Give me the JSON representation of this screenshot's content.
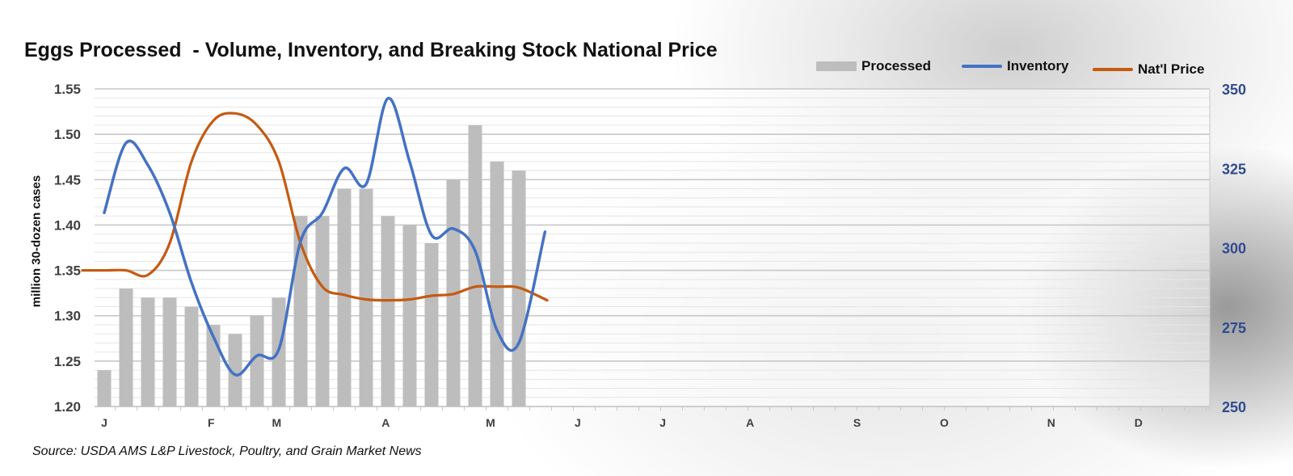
{
  "chart_data": {
    "type": "bar+line",
    "title": "Eggs Processed  - Volume, Inventory, and Breaking Stock National Price",
    "ylabel": "million 30-dozen cases",
    "source": "Source: USDA AMS L&P Livestock, Poultry, and Grain Market News",
    "x_unit": "week of year (0 = first week of January)",
    "month_labels": [
      "J",
      "F",
      "M",
      "A",
      "M",
      "J",
      "J",
      "A",
      "S",
      "O",
      "N",
      "D"
    ],
    "month_label_weeks": [
      0,
      4.9,
      7.9,
      12.9,
      17.7,
      21.7,
      25.6,
      29.6,
      34.5,
      38.5,
      43.4,
      47.4
    ],
    "yleft": {
      "ticks": [
        "1.20",
        "1.25",
        "1.30",
        "1.35",
        "1.40",
        "1.45",
        "1.50",
        "1.55"
      ],
      "lim": [
        1.2,
        1.55
      ]
    },
    "yright": {
      "ticks": [
        "250",
        "275",
        "300",
        "325",
        "350"
      ],
      "lim": [
        250,
        350
      ]
    },
    "grid": true,
    "legend": {
      "placement": "top-right",
      "entries": [
        "Processed",
        "Inventory",
        "Nat'l Price"
      ]
    },
    "colors": {
      "processed": "#bdbdbd",
      "inventory": "#4472C4",
      "price": "#C55A11",
      "right_axis": "#2F4B8F"
    },
    "series": [
      {
        "name": "Processed",
        "type": "bar",
        "axis": "left",
        "x": [
          0,
          1,
          2,
          3,
          4,
          5,
          6,
          7,
          8,
          9,
          10,
          11,
          12,
          13,
          14,
          15,
          16,
          17,
          18,
          19
        ],
        "values": [
          1.24,
          1.33,
          1.32,
          1.32,
          1.31,
          1.29,
          1.28,
          1.3,
          1.32,
          1.41,
          1.41,
          1.44,
          1.44,
          1.41,
          1.4,
          1.38,
          1.45,
          1.51,
          1.47,
          1.46
        ]
      },
      {
        "name": "Inventory",
        "type": "line",
        "axis": "right",
        "x": [
          0,
          1,
          2,
          3,
          4,
          5,
          6,
          7,
          8,
          9,
          10,
          11,
          12,
          13,
          14,
          15,
          16,
          17,
          18,
          19,
          20.2
        ],
        "values": [
          311,
          333,
          326,
          311,
          289,
          272,
          260,
          266,
          268,
          302,
          311,
          325,
          320,
          347,
          327,
          304,
          306,
          299,
          274,
          270,
          305
        ]
      },
      {
        "name": "Nat'l Price",
        "type": "line",
        "axis": "left",
        "x": [
          -1,
          0,
          1,
          2,
          3,
          4,
          5,
          6,
          7,
          8,
          9,
          10,
          11,
          12,
          13,
          14,
          15,
          16,
          17,
          18,
          19,
          20.3
        ],
        "values": [
          1.35,
          1.35,
          1.35,
          1.345,
          1.38,
          1.47,
          1.515,
          1.523,
          1.51,
          1.47,
          1.38,
          1.332,
          1.323,
          1.318,
          1.317,
          1.318,
          1.322,
          1.324,
          1.332,
          1.332,
          1.331,
          1.317
        ]
      }
    ]
  }
}
